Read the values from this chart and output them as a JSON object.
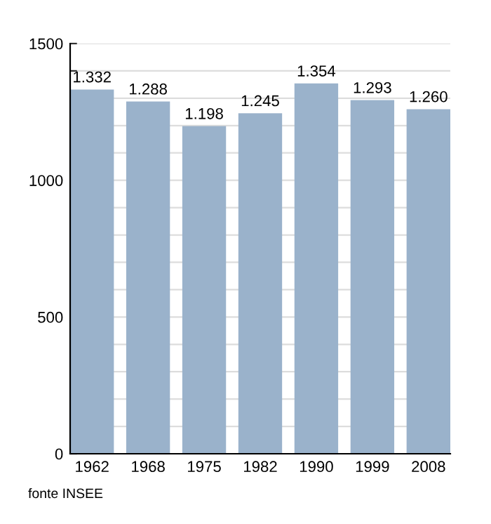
{
  "chart_data": {
    "type": "bar",
    "categories": [
      "1962",
      "1968",
      "1975",
      "1982",
      "1990",
      "1999",
      "2008"
    ],
    "values": [
      1332,
      1288,
      1198,
      1245,
      1354,
      1293,
      1260
    ],
    "value_labels": [
      "1.332",
      "1.288",
      "1.198",
      "1.245",
      "1.354",
      "1.293",
      "1.260"
    ],
    "color": "#9ab2cb",
    "ylim": [
      0,
      1500
    ],
    "yticks": [
      0,
      {
        "value": 100,
        "label": null
      },
      {
        "value": 200,
        "label": null
      },
      {
        "value": 300,
        "label": null
      },
      {
        "value": 400,
        "label": null
      },
      500,
      {
        "value": 600,
        "label": null
      },
      {
        "value": 700,
        "label": null
      },
      {
        "value": 800,
        "label": null
      },
      {
        "value": 900,
        "label": null
      },
      1000,
      {
        "value": 1100,
        "label": null
      },
      {
        "value": 1200,
        "label": null
      },
      {
        "value": 1300,
        "label": null
      },
      {
        "value": 1400,
        "label": null
      },
      1500
    ],
    "grid": "y",
    "annotations": [
      "fonte INSEE"
    ]
  }
}
